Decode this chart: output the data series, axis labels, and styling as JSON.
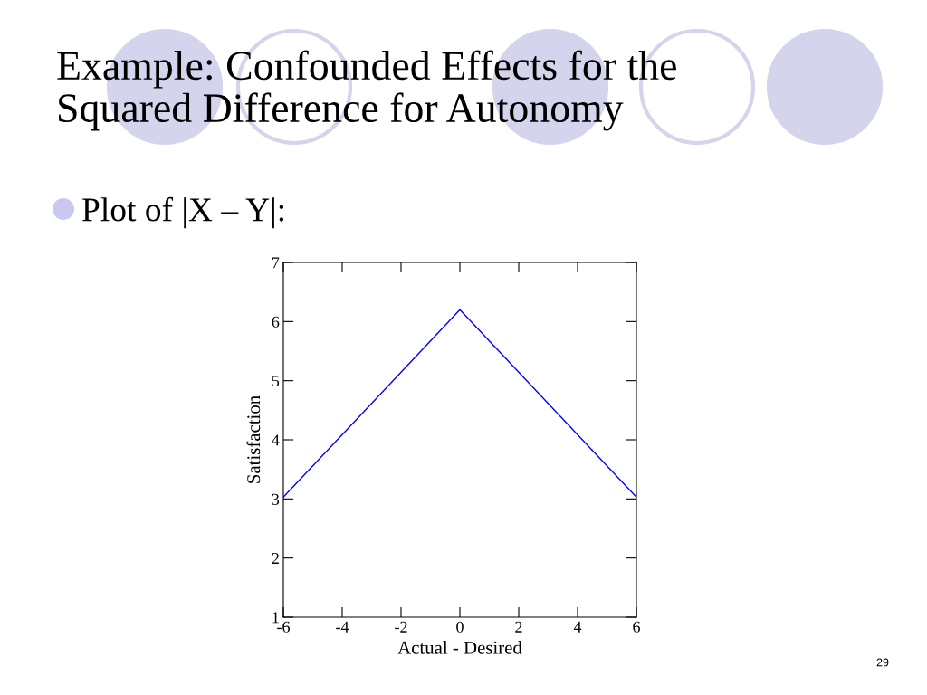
{
  "chart_data": {
    "type": "line",
    "title": "Example: Confounded Effects for the\nSquared Difference for Autonomy",
    "subtitle": "Plot of |X – Y|:",
    "xlabel": "Actual - Desired",
    "ylabel": "Satisfaction",
    "x": [
      -6,
      0,
      6
    ],
    "series": [
      {
        "color": "#0000ff",
        "values": [
          3.03,
          6.2,
          3.03
        ]
      }
    ],
    "xlim": [
      -6,
      6
    ],
    "xticks": [
      -6,
      -4,
      -2,
      0,
      2,
      4,
      6
    ],
    "ylim": [
      1,
      7
    ],
    "yticks": [
      1,
      2,
      3,
      4,
      5,
      6,
      7
    ],
    "grid": false,
    "legend": false,
    "marker": "none",
    "line_style": "solid",
    "annotations": [
      "29"
    ]
  }
}
